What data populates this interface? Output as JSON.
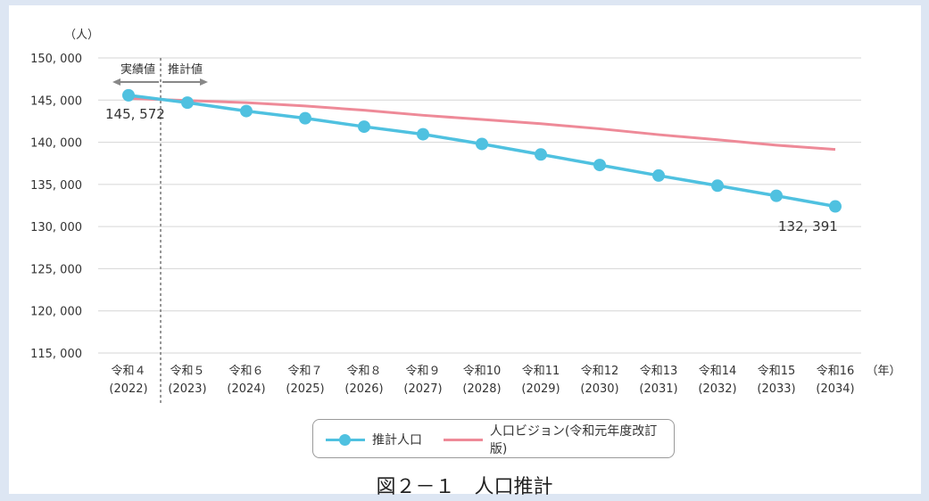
{
  "chart_data": {
    "type": "line",
    "y_unit_label": "（人）",
    "x_unit_label": "（年）",
    "categories": [
      [
        "令和４",
        "(2022)"
      ],
      [
        "令和５",
        "(2023)"
      ],
      [
        "令和６",
        "(2024)"
      ],
      [
        "令和７",
        "(2025)"
      ],
      [
        "令和８",
        "(2026)"
      ],
      [
        "令和９",
        "(2027)"
      ],
      [
        "令和10",
        "(2028)"
      ],
      [
        "令和11",
        "(2029)"
      ],
      [
        "令和12",
        "(2030)"
      ],
      [
        "令和13",
        "(2031)"
      ],
      [
        "令和14",
        "(2032)"
      ],
      [
        "令和15",
        "(2033)"
      ],
      [
        "令和16",
        "(2034)"
      ]
    ],
    "ylim": [
      115000,
      150000
    ],
    "yticks": [
      115000,
      120000,
      125000,
      130000,
      135000,
      140000,
      145000,
      150000
    ],
    "ytick_labels": [
      "115, 000",
      "120, 000",
      "125, 000",
      "130, 000",
      "135, 000",
      "140, 000",
      "145, 000",
      "150, 000"
    ],
    "grid": true,
    "series": [
      {
        "name": "推計人口",
        "color": "#4fc1e0",
        "marker": "circle",
        "values": [
          145572,
          144700,
          143700,
          142850,
          141850,
          140950,
          139800,
          138550,
          137300,
          136050,
          134850,
          133650,
          132391
        ]
      },
      {
        "name": "人口ビジョン(令和元年度改訂版)",
        "color": "#ee8a98",
        "marker": "none",
        "values": [
          145200,
          144950,
          144700,
          144300,
          143800,
          143200,
          142700,
          142200,
          141600,
          140900,
          140300,
          139650,
          139150
        ]
      }
    ],
    "annotations": {
      "actual_label": "実績値",
      "forecast_label": "推計値",
      "first_value_label": "145, 572",
      "last_value_label": "132, 391"
    },
    "divider_between_categories": [
      0,
      1
    ],
    "legend_position": "bottom"
  },
  "caption": "図２－１　人口推計"
}
